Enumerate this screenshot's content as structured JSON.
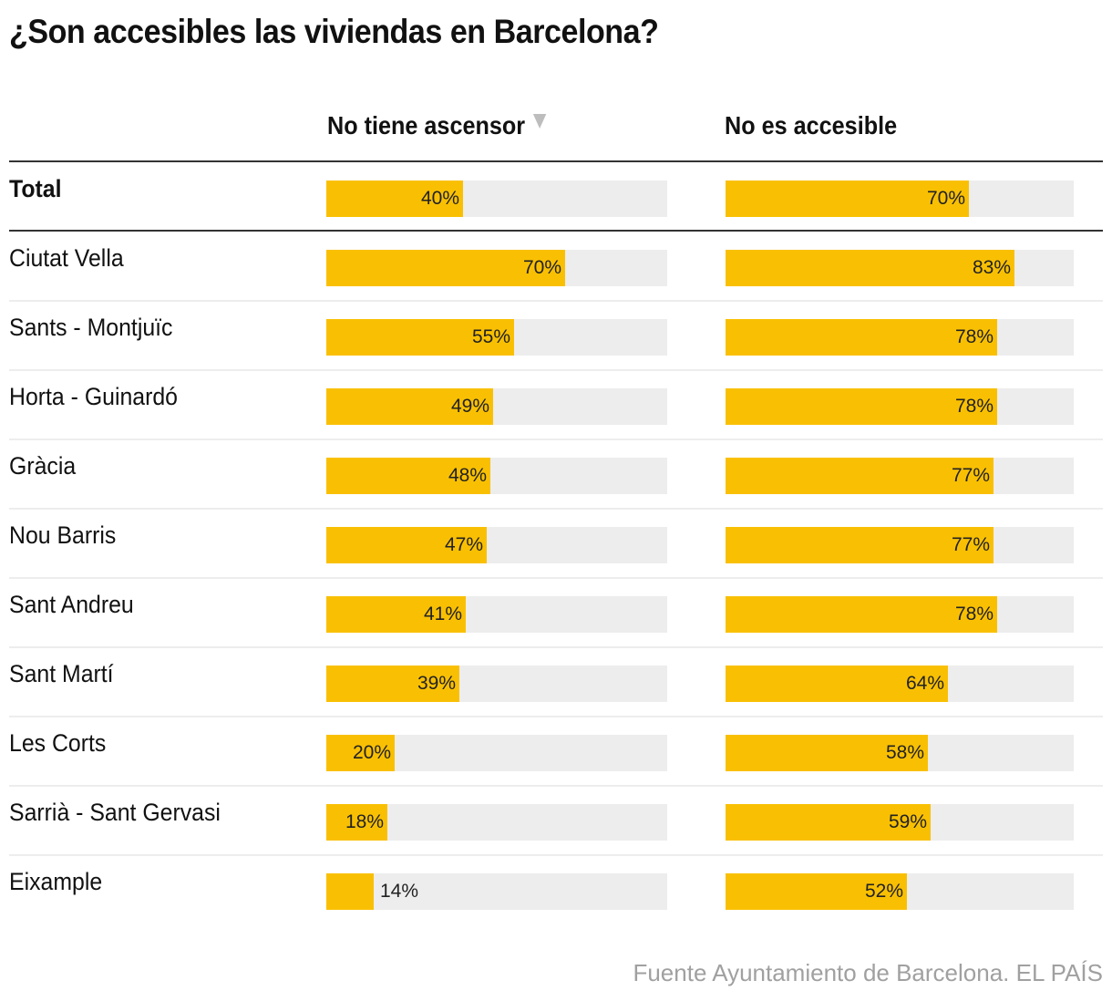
{
  "title": "¿Son accesibles las viviendas en Barcelona?",
  "columns": [
    {
      "label": "No tiene ascensor",
      "sorted": true,
      "sort_icon": "sort-descending-triangle-icon"
    },
    {
      "label": "No es accesible",
      "sorted": false
    }
  ],
  "source": "Fuente Ayuntamiento de Barcelona. EL PAÍS",
  "colors": {
    "bar": "#f9c003",
    "track": "#ededed",
    "text": "#111111",
    "source": "#a0a0a0"
  },
  "chart_data": {
    "type": "bar",
    "orientation": "horizontal",
    "title": "¿Son accesibles las viviendas en Barcelona?",
    "xlim": [
      0,
      100
    ],
    "unit": "%",
    "series": [
      {
        "name": "No tiene ascensor",
        "values": [
          40,
          70,
          55,
          49,
          48,
          47,
          41,
          39,
          20,
          18,
          14
        ]
      },
      {
        "name": "No es accesible",
        "values": [
          70,
          83,
          78,
          78,
          77,
          77,
          78,
          64,
          58,
          59,
          52
        ]
      }
    ],
    "categories": [
      "Total",
      "Ciutat Vella",
      "Sants - Montjuïc",
      "Horta - Guinardó",
      "Gràcia",
      "Nou Barris",
      "Sant Andreu",
      "Sant Martí",
      "Les Corts",
      "Sarrià - Sant Gervasi",
      "Eixample"
    ],
    "rows": [
      {
        "label": "Total",
        "total": true,
        "v1": 40,
        "v1_label": "40%",
        "v2": 70,
        "v2_label": "70%"
      },
      {
        "label": "Ciutat Vella",
        "v1": 70,
        "v1_label": "70%",
        "v2": 83,
        "v2_label": "83%"
      },
      {
        "label": "Sants - Montjuïc",
        "v1": 55,
        "v1_label": "55%",
        "v2": 78,
        "v2_label": "78%"
      },
      {
        "label": "Horta - Guinardó",
        "v1": 49,
        "v1_label": "49%",
        "v2": 78,
        "v2_label": "78%"
      },
      {
        "label": "Gràcia",
        "v1": 48,
        "v1_label": "48%",
        "v2": 77,
        "v2_label": "77%"
      },
      {
        "label": "Nou Barris",
        "v1": 47,
        "v1_label": "47%",
        "v2": 77,
        "v2_label": "77%"
      },
      {
        "label": "Sant Andreu",
        "v1": 41,
        "v1_label": "41%",
        "v2": 78,
        "v2_label": "78%"
      },
      {
        "label": "Sant Martí",
        "v1": 39,
        "v1_label": "39%",
        "v2": 64,
        "v2_label": "64%"
      },
      {
        "label": "Les Corts",
        "v1": 20,
        "v1_label": "20%",
        "v2": 58,
        "v2_label": "58%"
      },
      {
        "label": "Sarrià - Sant Gervasi",
        "v1": 18,
        "v1_label": "18%",
        "v2": 59,
        "v2_label": "59%"
      },
      {
        "label": "Eixample",
        "v1": 14,
        "v1_label": "14%",
        "v2": 52,
        "v2_label": "52%"
      }
    ]
  }
}
